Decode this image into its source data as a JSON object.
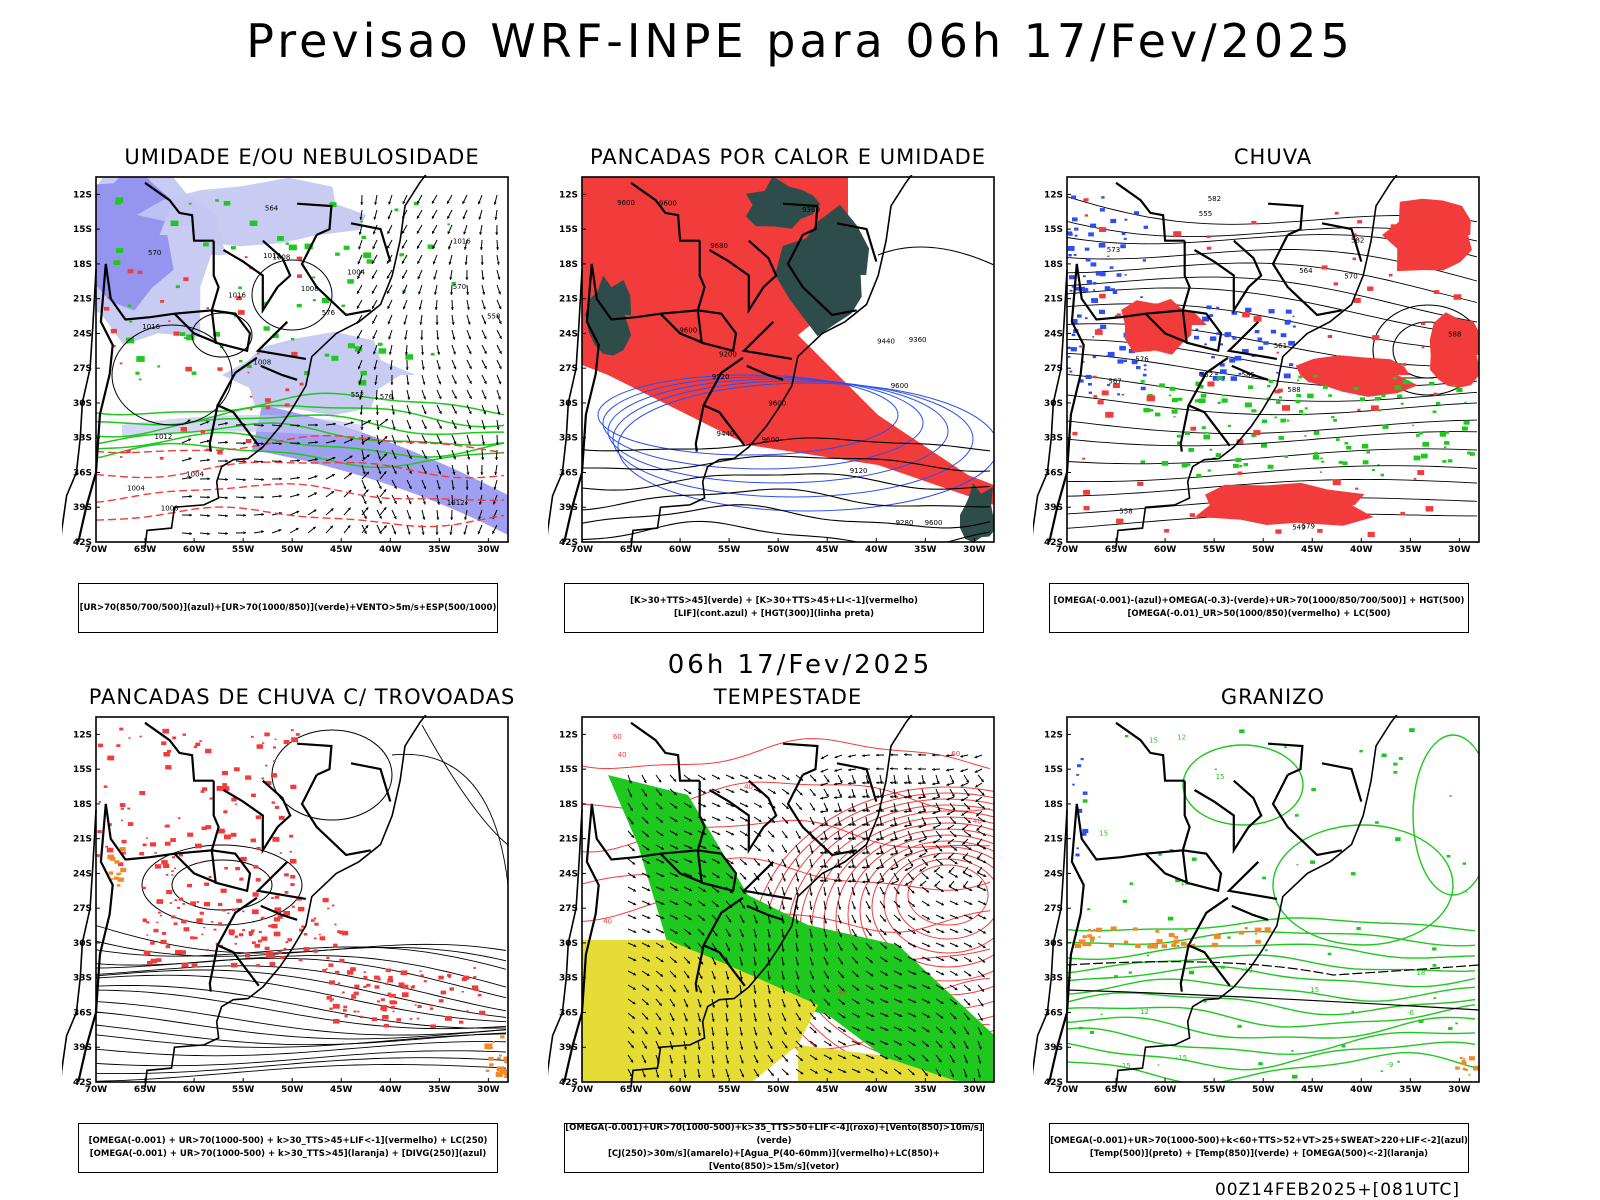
{
  "title": "Previsao WRF-INPE  para 06h 17/Fev/2025",
  "mid_date": "06h 17/Fev/2025",
  "footer": "00Z14FEB2025+[081UTC]",
  "axes": {
    "lat_labels": [
      "12S",
      "15S",
      "18S",
      "21S",
      "24S",
      "27S",
      "30S",
      "33S",
      "36S",
      "39S",
      "42S"
    ],
    "lon_labels": [
      "70W",
      "65W",
      "60W",
      "55W",
      "50W",
      "45W",
      "40W",
      "35W",
      "30W"
    ]
  },
  "colors": {
    "blue_fill": "#8f8ff0",
    "light_blue": "#c2c6f2",
    "red_fill": "#f23c3c",
    "green_fill": "#1ec81e",
    "yellow_fill": "#e5dc36",
    "dark_teal": "#2e4d4a",
    "orange": "#f08a28",
    "line_green": "#1ec81e",
    "line_red": "#f23c3c",
    "line_blue": "#2d4ef0"
  },
  "panels": [
    {
      "title": "UMIDADE E/OU NEBULOSIDADE",
      "legend": [
        "[UR>70(850/700/500)](azul)+[UR>70(1000/850)](verde)+VENTO>5m/s+ESP(500/1000)"
      ],
      "labels": [
        "1012",
        "1016",
        "1016",
        "1008",
        "1004",
        "1008",
        "1012",
        "1008",
        "1012",
        "1016",
        "1004",
        "1004",
        "1008",
        "576",
        "576",
        "570",
        "564",
        "558",
        "552",
        "570"
      ]
    },
    {
      "title": "PANCADAS POR CALOR E UMIDADE",
      "legend": [
        "[K>30+TTS>45](verde) + [K>30+TTS>45+LI<-1](vermelho)",
        "[LIF](cont.azul) + [HGT(300)](linha preta)"
      ],
      "labels": [
        "9600",
        "9600",
        "9600",
        "9600",
        "9600",
        "9680",
        "9600",
        "9520",
        "9440",
        "9440",
        "9360",
        "9360",
        "9600",
        "9280",
        "9200",
        "9120"
      ]
    },
    {
      "title": "CHUVA",
      "legend": [
        "[OMEGA(-0.001)-(azul)+OMEGA(-0.3)-(verde)+UR>70(1000/850/700/500)] + HGT(500)",
        "[OMEGA(-0.01)_UR>50(1000/850)(vermelho) + LC(500)"
      ],
      "labels": [
        "582",
        "582",
        "588",
        "585",
        "588",
        "576",
        "573",
        "570",
        "567",
        "564",
        "561",
        "558",
        "555",
        "552",
        "549",
        "579"
      ]
    },
    {
      "title": "PANCADAS DE CHUVA C/ TROVOADAS",
      "legend": [
        "[OMEGA(-0.001) + UR>70(1000-500) + k>30_TTS>45+LIF<-1](vermelho) + LC(250)",
        "[OMEGA(-0.001) + UR>70(1000-500) + k>30_TTS>45](laranja) + [DIVG(250)](azul)"
      ],
      "labels": []
    },
    {
      "title": "TEMPESTADE",
      "legend": [
        "[OMEGA(-0.001)+UR>70(1000-500)+k>35_TTS>50+LIF<-4](roxo)+[Vento(850)>10m/s](verde)",
        "[CJ(250)>30m/s](amarelo)+[Agua_P(40-60mm)](vermelho)+LC(850)+[Vento(850)>15m/s](vetor)"
      ],
      "labels": [
        "40",
        "60",
        "40",
        "60",
        "40",
        "40",
        "40"
      ]
    },
    {
      "title": "GRANIZO",
      "legend": [
        "[OMEGA(-0.001)+UR>70(1000-500)+k<60+TTS>52+VT>25+SWEAT>220+LIF<-2](azul)",
        "[Temp(500)](preto) + [Temp(850)](verde) + [OMEGA(500)<-2](laranja)"
      ],
      "labels": [
        "15",
        "15",
        "15",
        "15",
        "12",
        "-9",
        "-12",
        "-15",
        "-15",
        "12",
        "15",
        "18",
        "-6"
      ]
    }
  ]
}
